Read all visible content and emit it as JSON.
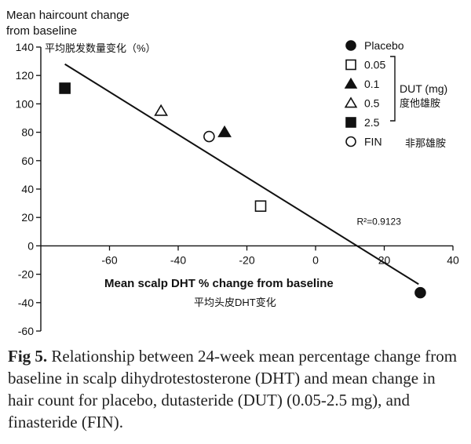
{
  "chart_data": {
    "type": "scatter",
    "title_line1": "Mean haircount change",
    "title_line2": "from baseline",
    "ylabel_cn": "平均脱发数量变化（%）",
    "xlabel": "Mean scalp DHT % change from baseline",
    "xlabel_cn": "平均头皮DHT变化",
    "xlim": [
      -80,
      40
    ],
    "ylim": [
      -60,
      140
    ],
    "xticks": [
      -60,
      -40,
      -20,
      0,
      20,
      40
    ],
    "yticks": [
      140,
      120,
      100,
      80,
      60,
      40,
      20,
      0,
      -20,
      -40,
      -60
    ],
    "series": [
      {
        "name": "Placebo",
        "marker": "filled-circle",
        "x": 30.5,
        "y": -33
      },
      {
        "name": "0.05",
        "marker": "open-square",
        "x": -16,
        "y": 28
      },
      {
        "name": "0.1",
        "marker": "filled-triangle",
        "x": -26.5,
        "y": 80
      },
      {
        "name": "0.5",
        "marker": "open-triangle",
        "x": -45,
        "y": 95
      },
      {
        "name": "2.5",
        "marker": "filled-square",
        "x": -73,
        "y": 111
      },
      {
        "name": "FIN",
        "marker": "open-circle",
        "x": -31,
        "y": 77
      }
    ],
    "regression": {
      "x1": -73,
      "y1": 128,
      "x2": 30,
      "y2": -27,
      "label": "R²=0.9123",
      "label_x": 12,
      "label_y": 15
    },
    "legend": {
      "items": [
        "Placebo",
        "0.05",
        "0.1",
        "0.5",
        "2.5",
        "FIN"
      ],
      "group_label_line1": "DUT (mg)",
      "group_label_line2": "度他雄胺",
      "fin_label_cn": "非那雄胺",
      "position": "top-right"
    }
  },
  "caption": {
    "label": "Fig 5.",
    "text": "Relationship between 24-week mean percentage change from baseline in scalp dihydrotestosterone (DHT) and mean change in hair count for placebo, dutasteride (DUT) (0.05-2.5 mg), and finasteride (FIN)."
  }
}
